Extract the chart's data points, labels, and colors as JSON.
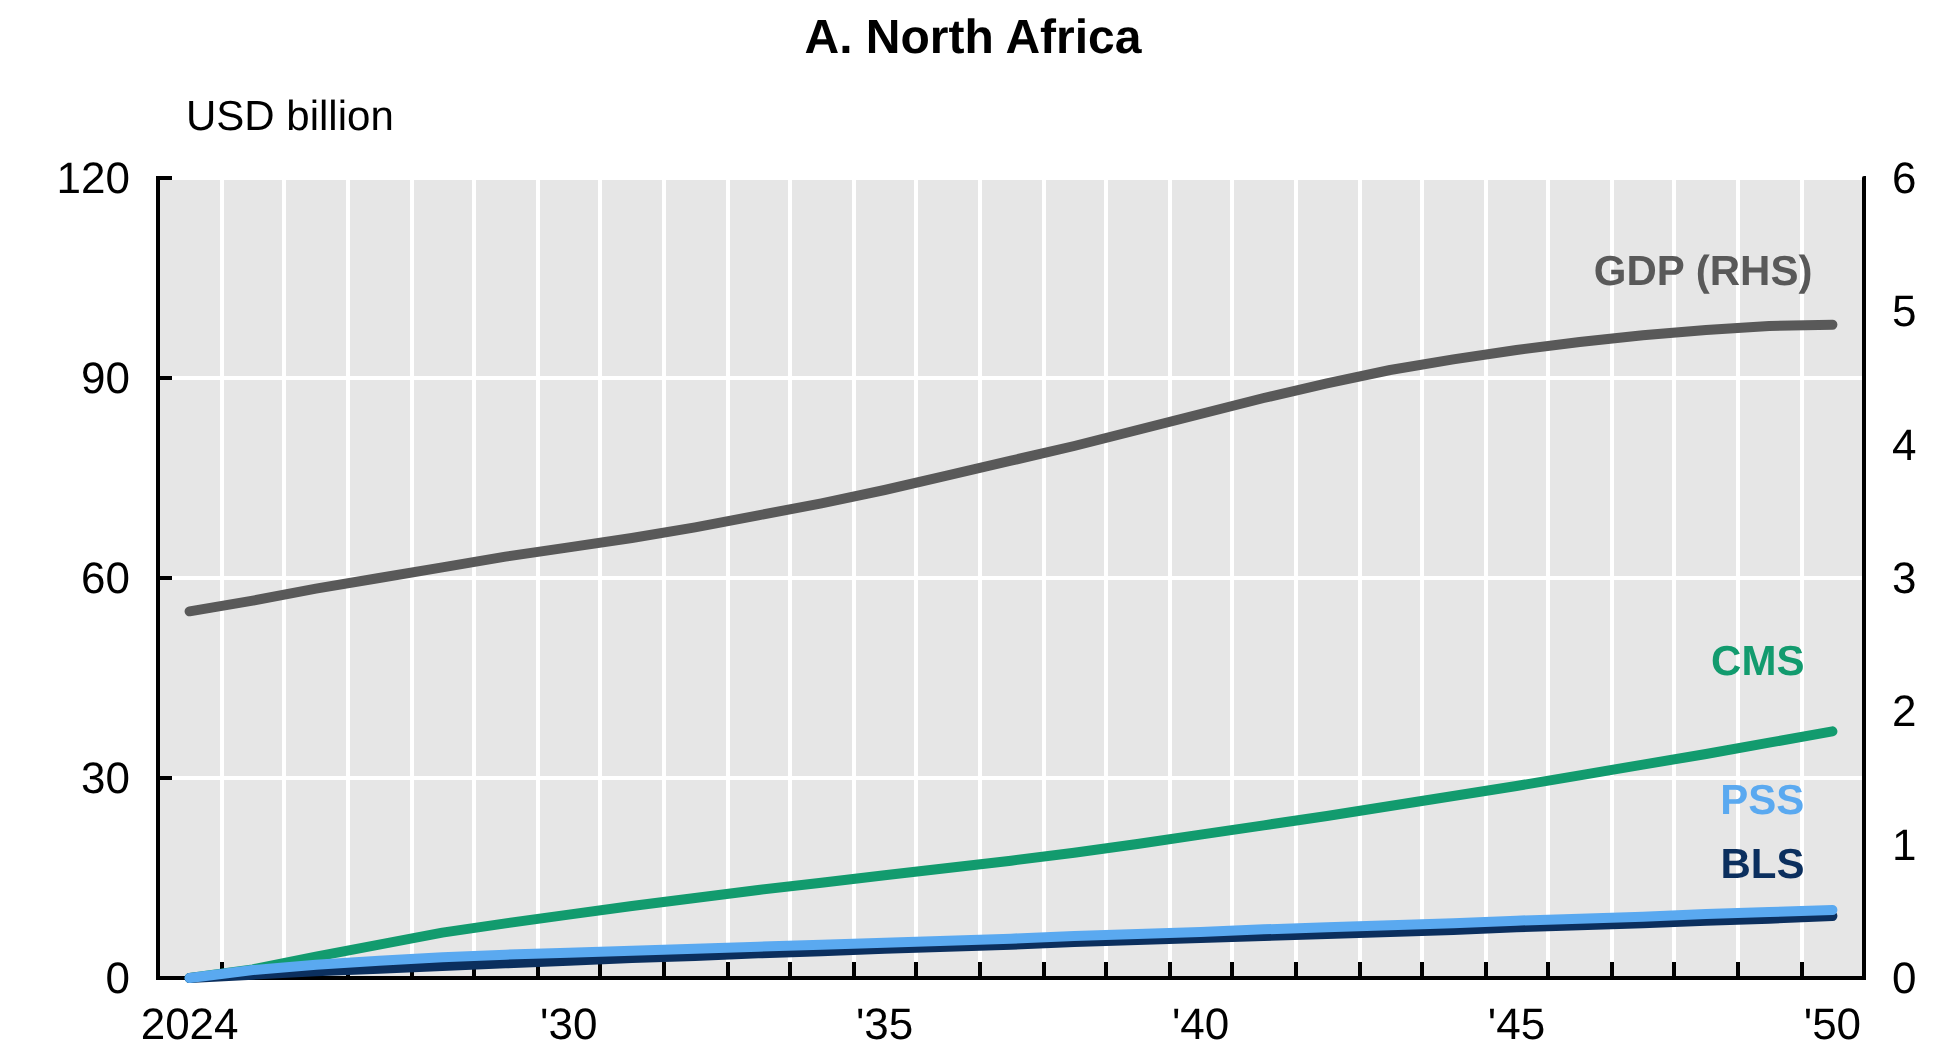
{
  "chart_data": {
    "type": "line",
    "title": "A. North Africa",
    "ylabel": "USD billion",
    "categories": [
      "2024",
      null,
      null,
      null,
      null,
      null,
      "'30",
      null,
      null,
      null,
      null,
      "'35",
      null,
      null,
      null,
      null,
      "'40",
      null,
      null,
      null,
      null,
      "'45",
      null,
      null,
      null,
      null,
      "'50"
    ],
    "ylim": [
      0,
      120
    ],
    "yticks": [
      0,
      30,
      60,
      90,
      120
    ],
    "y2lim": [
      0,
      6
    ],
    "y2ticks": [
      0,
      1,
      2,
      3,
      4,
      5,
      6
    ],
    "grid": true,
    "legend": false,
    "marker": "none",
    "line_style": "solid",
    "series": [
      {
        "name": "GDP (RHS)",
        "color": "#595959",
        "axis": "y2",
        "values": [
          2.75,
          2.83,
          2.92,
          3.0,
          3.08,
          3.16,
          3.23,
          3.3,
          3.38,
          3.47,
          3.56,
          3.66,
          3.77,
          3.88,
          3.99,
          4.11,
          4.23,
          4.35,
          4.46,
          4.56,
          4.64,
          4.71,
          4.77,
          4.82,
          4.86,
          4.89,
          4.9
        ]
      },
      {
        "name": "CMS",
        "color": "#129b6e",
        "values": [
          0,
          1.3,
          3.2,
          5.0,
          6.8,
          8.2,
          9.5,
          10.8,
          12.0,
          13.2,
          14.3,
          15.4,
          16.5,
          17.6,
          18.8,
          20.1,
          21.5,
          22.9,
          24.3,
          25.8,
          27.3,
          28.8,
          30.4,
          32.0,
          33.6,
          35.3,
          37.0
        ]
      },
      {
        "name": "BLS",
        "color": "#0b2f5e",
        "values": [
          0,
          0.5,
          1.0,
          1.4,
          1.8,
          2.2,
          2.6,
          3.0,
          3.3,
          3.7,
          4.0,
          4.4,
          4.7,
          5.0,
          5.4,
          5.7,
          6.0,
          6.3,
          6.6,
          6.9,
          7.2,
          7.6,
          7.9,
          8.2,
          8.6,
          8.9,
          9.3
        ]
      },
      {
        "name": "PSS",
        "color": "#5aa9f0",
        "values": [
          0,
          1.2,
          2.0,
          2.6,
          3.1,
          3.5,
          3.8,
          4.1,
          4.4,
          4.7,
          5.0,
          5.3,
          5.6,
          5.9,
          6.3,
          6.6,
          6.9,
          7.3,
          7.6,
          7.9,
          8.2,
          8.6,
          8.9,
          9.2,
          9.6,
          9.9,
          10.2
        ]
      }
    ]
  }
}
